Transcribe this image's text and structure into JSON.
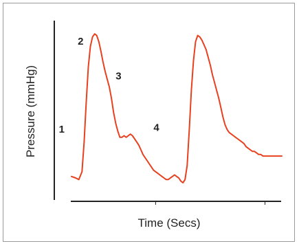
{
  "chart_data": {
    "type": "line",
    "xlabel": "Time (Secs)",
    "ylabel": "Pressure (mmHg)",
    "title": "",
    "colors": {
      "line": "#e8401e",
      "axis": "#222222",
      "text": "#222222"
    },
    "xlim": [
      0,
      100
    ],
    "ylim": [
      0,
      100
    ],
    "grid": false,
    "x_ticks": [
      40,
      92
    ],
    "x_tick_labels": [
      "",
      ""
    ],
    "series": [
      {
        "name": "",
        "x": [
          0,
          2,
          3.5,
          5,
          6,
          7,
          8,
          9,
          10,
          11,
          12,
          13,
          14,
          15,
          16,
          17,
          18,
          19,
          20,
          21,
          22,
          23,
          24,
          25,
          26,
          27,
          28,
          29,
          30,
          31,
          32,
          33,
          34,
          35,
          36,
          37,
          38,
          39,
          40,
          41,
          42,
          43,
          44,
          45,
          46,
          47,
          48,
          49,
          50,
          51,
          52,
          53,
          54,
          55,
          56,
          57,
          58,
          59,
          60,
          61,
          62,
          63,
          64,
          65,
          66,
          67,
          68,
          69,
          70,
          71,
          72,
          73,
          74,
          75,
          76,
          77,
          78,
          79,
          80,
          81,
          82,
          83,
          84,
          85,
          86,
          87,
          88,
          89,
          90,
          91,
          92,
          93,
          94,
          95,
          96,
          97,
          98,
          99,
          100
        ],
        "y": [
          8,
          7,
          6,
          11,
          30,
          55,
          78,
          91,
          97,
          99,
          98,
          94,
          88,
          81,
          75,
          70,
          65,
          58,
          49,
          42,
          37,
          33,
          33,
          34,
          33,
          34,
          35,
          34,
          32,
          30,
          28,
          25,
          22,
          20,
          18,
          16,
          14,
          12,
          11,
          10,
          9,
          8,
          7,
          6,
          6,
          7,
          8,
          9,
          8,
          7,
          5,
          4,
          6,
          15,
          38,
          63,
          82,
          94,
          98,
          97,
          95,
          92,
          89,
          84,
          79,
          73,
          68,
          63,
          58,
          52,
          46,
          41,
          38,
          36,
          35,
          34,
          33,
          32,
          31,
          30,
          29,
          27,
          26,
          25,
          24,
          24,
          23,
          22,
          22,
          21,
          21,
          21,
          21,
          21,
          21,
          21,
          21,
          21,
          21
        ]
      }
    ],
    "annotations": [
      {
        "label": "1",
        "x": -6,
        "y": 36
      },
      {
        "label": "2",
        "x": 3,
        "y": 92
      },
      {
        "label": "3",
        "x": 21,
        "y": 70
      },
      {
        "label": "4",
        "x": 39,
        "y": 37
      }
    ]
  }
}
